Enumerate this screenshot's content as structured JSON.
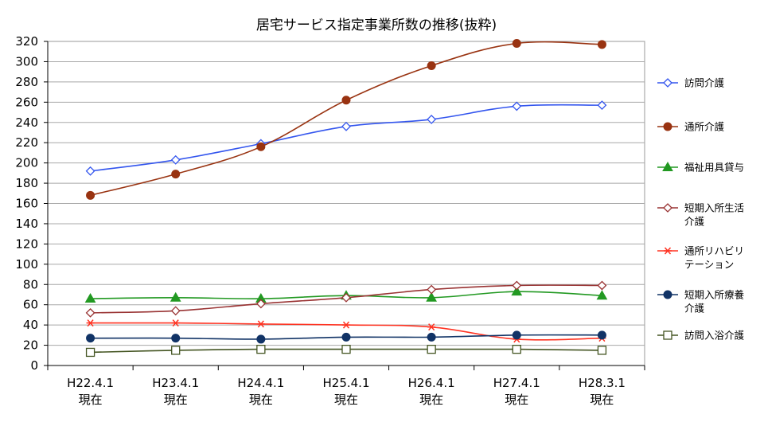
{
  "chart_data": {
    "type": "line",
    "title": "居宅サービス指定事業所数の推移(抜粋)",
    "xlabel": "",
    "ylabel": "",
    "ylim": [
      0,
      320
    ],
    "ytick_step": 20,
    "grid": true,
    "legend_position": "right",
    "categories": [
      [
        "H22.4.1",
        "現在"
      ],
      [
        "H23.4.1",
        "現在"
      ],
      [
        "H24.4.1",
        "現在"
      ],
      [
        "H25.4.1",
        "現在"
      ],
      [
        "H26.4.1",
        "現在"
      ],
      [
        "H27.4.1",
        "現在"
      ],
      [
        "H28.3.1",
        "現在"
      ]
    ],
    "series": [
      {
        "name": [
          "訪問介護"
        ],
        "values": [
          192,
          203,
          219,
          236,
          243,
          256,
          257
        ],
        "color": "#3355ee",
        "marker": "diamond-open"
      },
      {
        "name": [
          "通所介護"
        ],
        "values": [
          168,
          189,
          216,
          262,
          296,
          318,
          317
        ],
        "color": "#993311",
        "marker": "circle-filled"
      },
      {
        "name": [
          "福祉用具貸与"
        ],
        "values": [
          66,
          67,
          66,
          69,
          67,
          73,
          69
        ],
        "color": "#229922",
        "marker": "triangle-filled"
      },
      {
        "name": [
          "短期入所生活",
          "介護"
        ],
        "values": [
          52,
          54,
          61,
          67,
          75,
          79,
          79
        ],
        "color": "#993333",
        "marker": "diamond-open"
      },
      {
        "name": [
          "通所リハビリ",
          "テーション"
        ],
        "values": [
          42,
          42,
          41,
          40,
          38,
          26,
          27
        ],
        "color": "#ff3322",
        "marker": "asterisk"
      },
      {
        "name": [
          "短期入所療養",
          "介護"
        ],
        "values": [
          27,
          27,
          26,
          28,
          28,
          30,
          30
        ],
        "color": "#113366",
        "marker": "circle-filled"
      },
      {
        "name": [
          "訪問入浴介護"
        ],
        "values": [
          13,
          15,
          16,
          16,
          16,
          16,
          15
        ],
        "color": "#445522",
        "marker": "square-open"
      }
    ]
  }
}
